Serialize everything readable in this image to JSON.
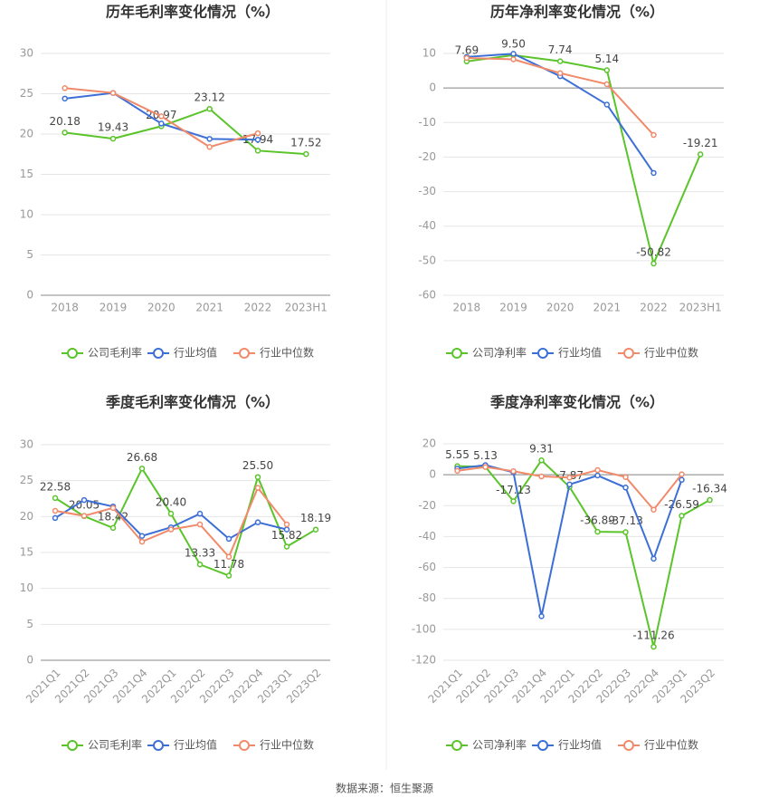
{
  "chart_data": [
    {
      "type": "line",
      "title": "历年毛利率变化情况（%）",
      "categories": [
        "2018",
        "2019",
        "2020",
        "2021",
        "2022",
        "2023H1"
      ],
      "ylim": [
        0,
        30
      ],
      "yticks": [
        0,
        5,
        10,
        15,
        20,
        25,
        30
      ],
      "grid": true,
      "series": [
        {
          "name": "公司毛利率",
          "color": "#5ac42a",
          "values": [
            20.18,
            19.43,
            20.97,
            23.12,
            17.94,
            17.52
          ],
          "value_labels": [
            "20.18",
            "19.43",
            "20.97",
            "23.12",
            "17.94",
            "17.52"
          ]
        },
        {
          "name": "行业均值",
          "color": "#3c6fd6",
          "values": [
            24.4,
            25.1,
            21.3,
            19.4,
            19.3,
            null
          ]
        },
        {
          "name": "行业中位数",
          "color": "#f08a6a",
          "values": [
            25.7,
            25.1,
            22.2,
            18.4,
            20.1,
            null
          ]
        }
      ]
    },
    {
      "type": "line",
      "title": "历年净利率变化情况（%）",
      "categories": [
        "2018",
        "2019",
        "2020",
        "2021",
        "2022",
        "2023H1"
      ],
      "ylim": [
        -60,
        10
      ],
      "yticks": [
        -60,
        -50,
        -40,
        -30,
        -20,
        -10,
        0,
        10
      ],
      "grid": true,
      "series": [
        {
          "name": "公司净利率",
          "color": "#5ac42a",
          "values": [
            7.69,
            9.5,
            7.74,
            5.14,
            -50.82,
            -19.21
          ],
          "value_labels": [
            "7.69",
            "9.50",
            "7.74",
            "5.14",
            "-50.82",
            "-19.21"
          ]
        },
        {
          "name": "行业均值",
          "color": "#3c6fd6",
          "values": [
            9.0,
            9.9,
            3.4,
            -4.8,
            -24.6,
            null
          ]
        },
        {
          "name": "行业中位数",
          "color": "#f08a6a",
          "values": [
            8.7,
            8.3,
            4.3,
            1.1,
            -13.6,
            null
          ]
        }
      ]
    },
    {
      "type": "line",
      "title": "季度毛利率变化情况（%）",
      "categories": [
        "2021Q1",
        "2021Q2",
        "2021Q3",
        "2021Q4",
        "2022Q1",
        "2022Q2",
        "2022Q3",
        "2022Q4",
        "2023Q1",
        "2023Q2"
      ],
      "ylim": [
        0,
        30
      ],
      "yticks": [
        0,
        5,
        10,
        15,
        20,
        25,
        30
      ],
      "grid": true,
      "rotate_x_labels": true,
      "series": [
        {
          "name": "公司毛利率",
          "color": "#5ac42a",
          "values": [
            22.58,
            20.05,
            18.42,
            26.68,
            20.4,
            13.33,
            11.78,
            25.5,
            15.82,
            18.19
          ],
          "value_labels": [
            "22.58",
            "20.05",
            "18.42",
            "26.68",
            "20.40",
            "13.33",
            "11.78",
            "25.50",
            "15.82",
            "18.19"
          ]
        },
        {
          "name": "行业均值",
          "color": "#3c6fd6",
          "values": [
            19.8,
            22.3,
            21.4,
            17.3,
            18.5,
            20.4,
            16.9,
            19.2,
            18.2,
            null
          ]
        },
        {
          "name": "行业中位数",
          "color": "#f08a6a",
          "values": [
            20.8,
            20.1,
            21.2,
            16.5,
            18.2,
            18.9,
            14.4,
            24.0,
            18.9,
            null
          ]
        }
      ]
    },
    {
      "type": "line",
      "title": "季度净利率变化情况（%）",
      "categories": [
        "2021Q1",
        "2021Q2",
        "2021Q3",
        "2021Q4",
        "2022Q1",
        "2022Q2",
        "2022Q3",
        "2022Q4",
        "2023Q1",
        "2023Q2"
      ],
      "ylim": [
        -120,
        20
      ],
      "yticks": [
        -120,
        -100,
        -80,
        -60,
        -40,
        -20,
        0,
        20
      ],
      "grid": true,
      "rotate_x_labels": true,
      "series": [
        {
          "name": "公司净利率",
          "color": "#5ac42a",
          "values": [
            5.55,
            5.13,
            -17.13,
            9.31,
            -7.87,
            -36.89,
            -37.13,
            -111.26,
            -26.59,
            -16.34
          ],
          "value_labels": [
            "5.55",
            "5.13",
            "-17.13",
            "9.31",
            "-7.87",
            "-36.89",
            "-37.13",
            "-111.26",
            "-26.59",
            "-16.34"
          ]
        },
        {
          "name": "行业均值",
          "color": "#3c6fd6",
          "values": [
            4.0,
            6.2,
            1.5,
            -91.5,
            -6.3,
            -0.5,
            -8.3,
            -54.3,
            -3.3,
            null
          ]
        },
        {
          "name": "行业中位数",
          "color": "#f08a6a",
          "values": [
            2.5,
            5.0,
            2.3,
            -1.1,
            -1.8,
            3.0,
            -1.5,
            -22.6,
            0.3,
            null
          ]
        }
      ]
    }
  ],
  "source": "数据来源：恒生聚源"
}
